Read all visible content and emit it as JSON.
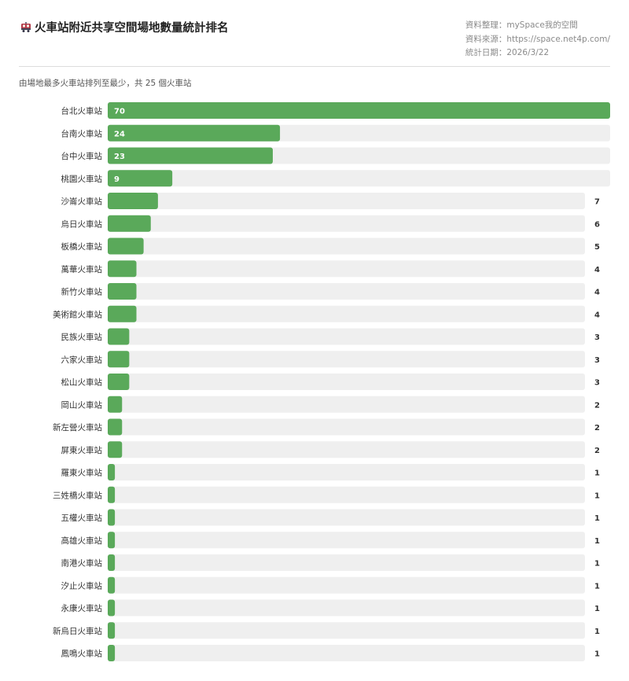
{
  "header": {
    "title": "火車站附近共享空間場地數量統計排名",
    "meta_org": "資料整理：mySpace我的空間",
    "meta_source": "資料來源：https://space.net4p.com/",
    "meta_date": "統計日期：2026/3/22"
  },
  "subtitle": "由場地最多火車站排列至最少，共 25 個火車站",
  "icon": "train-icon",
  "colors": {
    "bar": "#5aa95a",
    "track": "#efefef",
    "label": "#333333"
  },
  "chart_data": {
    "type": "bar",
    "orientation": "horizontal",
    "categories": [
      "台北火車站",
      "台南火車站",
      "台中火車站",
      "桃園火車站",
      "沙崙火車站",
      "烏日火車站",
      "板橋火車站",
      "萬華火車站",
      "新竹火車站",
      "美術館火車站",
      "民族火車站",
      "六家火車站",
      "松山火車站",
      "岡山火車站",
      "新左營火車站",
      "屏東火車站",
      "羅東火車站",
      "三姓橋火車站",
      "五權火車站",
      "高雄火車站",
      "南港火車站",
      "汐止火車站",
      "永康火車站",
      "新烏日火車站",
      "鳳鳴火車站"
    ],
    "values": [
      70,
      24,
      23,
      9,
      7,
      6,
      5,
      4,
      4,
      4,
      3,
      3,
      3,
      2,
      2,
      2,
      1,
      1,
      1,
      1,
      1,
      1,
      1,
      1,
      1
    ],
    "xlim": [
      0,
      70
    ],
    "grid": false,
    "legend": "none"
  }
}
